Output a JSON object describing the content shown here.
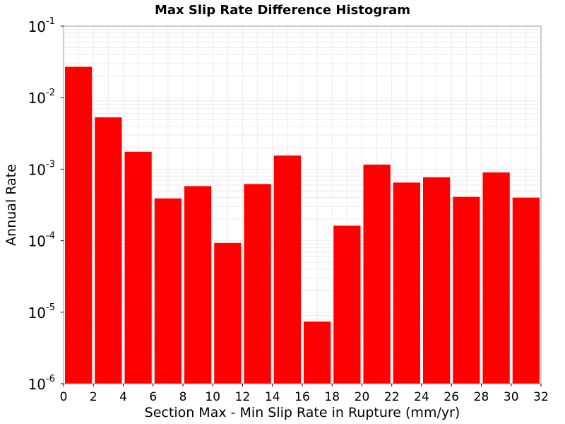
{
  "chart_data": {
    "type": "bar",
    "title": "Max Slip Rate Difference Histogram",
    "xlabel": "Section Max - Min Slip Rate in Rupture (mm/yr)",
    "ylabel": "Annual Rate",
    "xlim": [
      0,
      32
    ],
    "ylim": [
      1e-06,
      0.1
    ],
    "yscale": "log",
    "bin_width": 2,
    "bar_color": "#ff0000",
    "x_ticks": [
      "0",
      "2",
      "4",
      "6",
      "8",
      "10",
      "12",
      "14",
      "16",
      "18",
      "20",
      "22",
      "24",
      "26",
      "28",
      "30",
      "32"
    ],
    "y_ticks": [
      {
        "base": "10",
        "exp": "-1"
      },
      {
        "base": "10",
        "exp": "-2"
      },
      {
        "base": "10",
        "exp": "-3"
      },
      {
        "base": "10",
        "exp": "-4"
      },
      {
        "base": "10",
        "exp": "-5"
      },
      {
        "base": "10",
        "exp": "-6"
      }
    ],
    "bins": [
      {
        "x": 1,
        "value": 0.027
      },
      {
        "x": 3,
        "value": 0.0053
      },
      {
        "x": 5,
        "value": 0.00175
      },
      {
        "x": 7,
        "value": 0.00039
      },
      {
        "x": 9,
        "value": 0.00058
      },
      {
        "x": 11,
        "value": 9.3e-05
      },
      {
        "x": 13,
        "value": 0.00062
      },
      {
        "x": 15,
        "value": 0.00155
      },
      {
        "x": 17,
        "value": 7.4e-06
      },
      {
        "x": 19,
        "value": 0.000162
      },
      {
        "x": 21,
        "value": 0.00116
      },
      {
        "x": 23,
        "value": 0.00065
      },
      {
        "x": 25,
        "value": 0.00077
      },
      {
        "x": 27,
        "value": 0.00041
      },
      {
        "x": 29,
        "value": 0.0009
      },
      {
        "x": 31,
        "value": 0.0004
      }
    ],
    "grid": true
  }
}
